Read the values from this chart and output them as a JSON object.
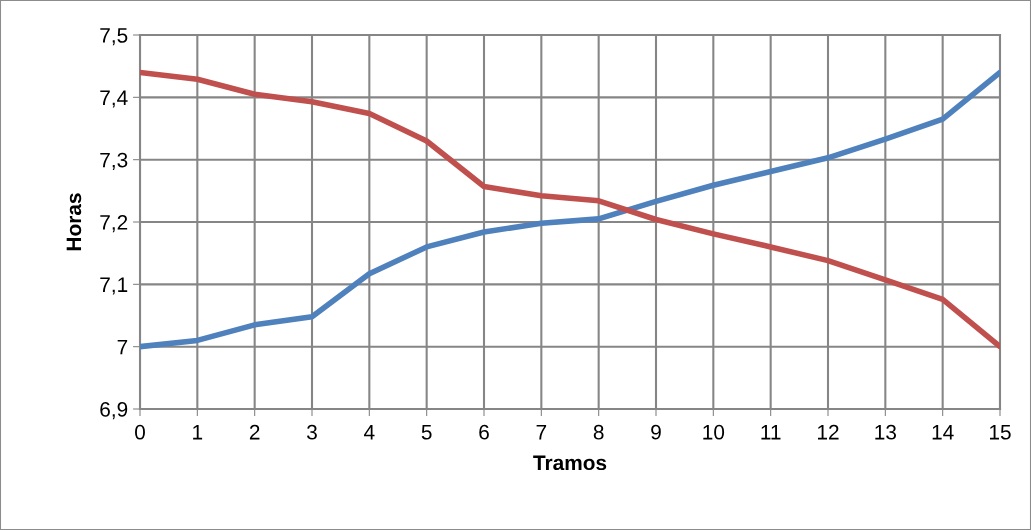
{
  "chart_data": {
    "type": "line",
    "xlabel": "Tramos",
    "ylabel": "Horas",
    "x": [
      0,
      1,
      2,
      3,
      4,
      5,
      6,
      7,
      8,
      9,
      10,
      11,
      12,
      13,
      14,
      15
    ],
    "series": [
      {
        "color": "#4f81bd",
        "values": [
          7.0,
          7.01,
          7.035,
          7.048,
          7.117,
          7.16,
          7.184,
          7.198,
          7.205,
          7.233,
          7.259,
          7.281,
          7.303,
          7.333,
          7.365,
          7.44
        ]
      },
      {
        "color": "#c0504d",
        "values": [
          7.44,
          7.429,
          7.405,
          7.393,
          7.374,
          7.33,
          7.257,
          7.242,
          7.234,
          7.204,
          7.181,
          7.16,
          7.138,
          7.107,
          7.076,
          7.0
        ]
      }
    ],
    "xlim": [
      0,
      15
    ],
    "xticks": [
      0,
      1,
      2,
      3,
      4,
      5,
      6,
      7,
      8,
      9,
      10,
      11,
      12,
      13,
      14,
      15
    ],
    "ylim": [
      6.9,
      7.5
    ],
    "yticks": [
      {
        "value": 6.9,
        "label": "6,9"
      },
      7,
      {
        "value": 7.1,
        "label": "7,1"
      },
      {
        "value": 7.2,
        "label": "7,2"
      },
      {
        "value": 7.3,
        "label": "7,3"
      },
      {
        "value": 7.4,
        "label": "7,4"
      },
      {
        "value": 7.5,
        "label": "7,5"
      }
    ],
    "grid": true,
    "marker": "none",
    "line_style": "solid"
  }
}
